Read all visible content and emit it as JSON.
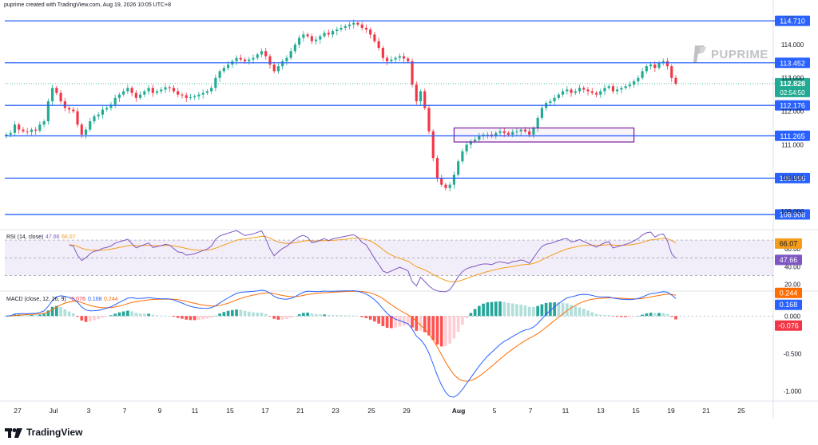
{
  "header": {
    "text": "puprime created with TradingView.com, Aug 19, 2026 10:05 UTC+8"
  },
  "brand": {
    "name": "TradingView"
  },
  "watermark": {
    "name": "PUPRIME"
  },
  "price_axis": {
    "unit": "JPY",
    "ticks": [
      "114.000",
      "113.000",
      "112.000",
      "111.000",
      "110.000",
      "109.000"
    ]
  },
  "levels": [
    {
      "label": "114.710",
      "value": 114.71,
      "color": "#2962ff"
    },
    {
      "label": "113.452",
      "value": 113.452,
      "color": "#2962ff"
    },
    {
      "label": "112.176",
      "value": 112.176,
      "color": "#2962ff"
    },
    {
      "label": "111.265",
      "value": 111.265,
      "color": "#2962ff"
    },
    {
      "label": "109.996",
      "value": 109.996,
      "color": "#2962ff"
    },
    {
      "label": "108.908",
      "value": 108.908,
      "color": "#2962ff"
    }
  ],
  "last_price": {
    "label": "112.828",
    "value": 112.828,
    "countdown": "02:54:50",
    "color": "#22ab94"
  },
  "box": {
    "price_top": 111.5,
    "price_bottom": 111.08,
    "color": "#7b1fa2"
  },
  "colors": {
    "up": "#22ab94",
    "down": "#f23645",
    "ma": "#f59c1a",
    "rsi": "#7e57c2",
    "macd": "#2962ff",
    "signal": "#ff6d00"
  },
  "rsi": {
    "title": "RSI (14, close)",
    "rsi_value": "47.66",
    "ma_value": "66.07",
    "ticks": [
      "60.00",
      "40.00",
      "20.00"
    ]
  },
  "macd": {
    "title": "MACD (close, 12, 26, 9)",
    "hist_value": "-0.076",
    "macd_value": "0.168",
    "signal_value": "0.244",
    "ticks": [
      "0.000",
      "-0.500",
      "-1.000"
    ]
  },
  "x_axis": {
    "labels": [
      "27",
      "Jul",
      "3",
      "7",
      "9",
      "11",
      "15",
      "17",
      "21",
      "23",
      "25",
      "29",
      "Aug",
      "5",
      "7",
      "11",
      "13",
      "15",
      "19",
      "21",
      "25"
    ]
  },
  "chart_data": {
    "type": "candlestick",
    "symbol_unit": "JPY",
    "ylim": [
      108.5,
      115.0
    ],
    "horizontal_levels": [
      114.71,
      113.452,
      112.176,
      111.265,
      109.996,
      108.908
    ],
    "last_close": 112.828,
    "close_series": [
      111.3,
      111.35,
      111.6,
      111.45,
      111.4,
      111.38,
      111.45,
      111.42,
      111.6,
      111.7,
      112.3,
      112.7,
      112.55,
      112.3,
      112.1,
      112.05,
      112.0,
      111.6,
      111.3,
      111.45,
      111.7,
      111.85,
      111.9,
      112.05,
      112.1,
      112.2,
      112.4,
      112.5,
      112.6,
      112.7,
      112.55,
      112.4,
      112.5,
      112.6,
      112.7,
      112.55,
      112.6,
      112.65,
      112.72,
      112.7,
      112.6,
      112.5,
      112.48,
      112.4,
      112.42,
      112.45,
      112.5,
      112.55,
      112.6,
      112.7,
      113.0,
      113.2,
      113.3,
      113.4,
      113.5,
      113.6,
      113.55,
      113.5,
      113.55,
      113.6,
      113.7,
      113.8,
      113.65,
      113.4,
      113.2,
      113.35,
      113.5,
      113.6,
      113.8,
      114.0,
      114.2,
      114.3,
      114.25,
      114.1,
      114.15,
      114.25,
      114.35,
      114.3,
      114.4,
      114.45,
      114.5,
      114.55,
      114.6,
      114.65,
      114.6,
      114.5,
      114.45,
      114.3,
      114.1,
      113.9,
      113.6,
      113.5,
      113.55,
      113.6,
      113.65,
      113.58,
      113.5,
      112.8,
      112.3,
      112.6,
      112.1,
      111.4,
      110.6,
      110.0,
      109.8,
      109.7,
      109.8,
      110.1,
      110.5,
      110.8,
      111.0,
      111.1,
      111.15,
      111.25,
      111.3,
      111.3,
      111.25,
      111.35,
      111.4,
      111.35,
      111.3,
      111.38,
      111.4,
      111.45,
      111.4,
      111.3,
      111.5,
      111.8,
      112.1,
      112.25,
      112.3,
      112.4,
      112.5,
      112.6,
      112.65,
      112.55,
      112.6,
      112.7,
      112.65,
      112.6,
      112.55,
      112.5,
      112.6,
      112.7,
      112.75,
      112.6,
      112.65,
      112.7,
      112.75,
      112.8,
      112.9,
      113.0,
      113.2,
      113.35,
      113.4,
      113.3,
      113.45,
      113.5,
      113.35,
      113.0,
      112.828
    ],
    "rsi": {
      "period": 14,
      "last": 47.66,
      "ma_last": 66.07,
      "band": [
        30,
        70
      ],
      "ylim": [
        15,
        80
      ]
    },
    "macd": {
      "fast": 12,
      "slow": 26,
      "signal": 9,
      "macd_last": 0.168,
      "signal_last": 0.244,
      "hist_last": -0.076,
      "ylim": [
        -1.1,
        0.3
      ]
    },
    "x_ticks": [
      "27",
      "Jul",
      "3",
      "7",
      "9",
      "11",
      "15",
      "17",
      "21",
      "23",
      "25",
      "29",
      "Aug",
      "5",
      "7",
      "11",
      "13",
      "15",
      "19",
      "21",
      "25"
    ]
  }
}
